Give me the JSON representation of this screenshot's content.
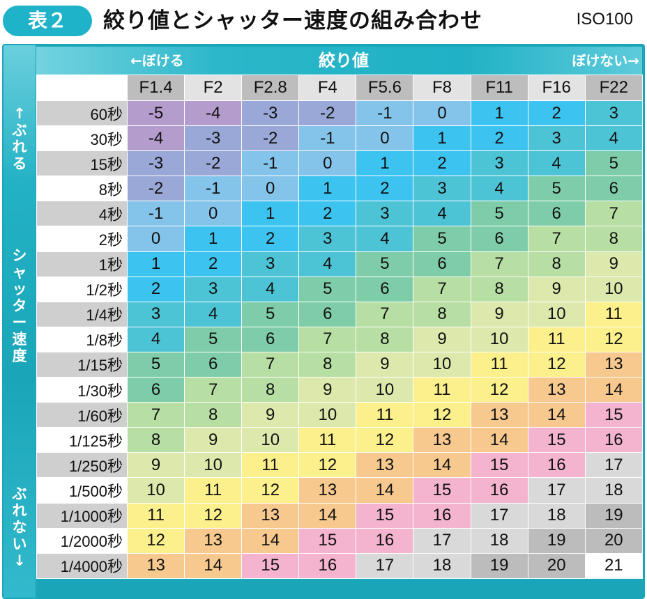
{
  "header": {
    "badge": "表２",
    "title": "絞り値とシャッター速度の組み合わせ",
    "iso": "ISO100"
  },
  "band": {
    "left": "←ぼける",
    "center": "絞り値",
    "right": "ぼけない→"
  },
  "side": {
    "top": [
      "↑",
      "ぶ",
      "れ",
      "る"
    ],
    "middle": [
      "シ",
      "ャ",
      "ッ",
      "タ",
      "ー",
      "速",
      "度"
    ],
    "bottom": [
      "ぶ",
      "れ",
      "な",
      "い",
      "↓"
    ]
  },
  "chart_data": {
    "type": "table",
    "title": "絞り値とシャッター速度の組み合わせ",
    "xlabel": "絞り値",
    "ylabel": "シャッター速度",
    "columns": [
      "F1.4",
      "F2",
      "F2.8",
      "F4",
      "F5.6",
      "F8",
      "F11",
      "F16",
      "F22"
    ],
    "rows": [
      "60秒",
      "30秒",
      "15秒",
      "8秒",
      "4秒",
      "2秒",
      "1秒",
      "1/2秒",
      "1/4秒",
      "1/8秒",
      "1/15秒",
      "1/30秒",
      "1/60秒",
      "1/125秒",
      "1/250秒",
      "1/500秒",
      "1/1000秒",
      "1/2000秒",
      "1/4000秒"
    ],
    "values": [
      [
        -5,
        -4,
        -3,
        -2,
        -1,
        0,
        1,
        2,
        3
      ],
      [
        -4,
        -3,
        -2,
        -1,
        0,
        1,
        2,
        3,
        4
      ],
      [
        -3,
        -2,
        -1,
        0,
        1,
        2,
        3,
        4,
        5
      ],
      [
        -2,
        -1,
        0,
        1,
        2,
        3,
        4,
        5,
        6
      ],
      [
        -1,
        0,
        1,
        2,
        3,
        4,
        5,
        6,
        7
      ],
      [
        0,
        1,
        2,
        3,
        4,
        5,
        6,
        7,
        8
      ],
      [
        1,
        2,
        3,
        4,
        5,
        6,
        7,
        8,
        9
      ],
      [
        2,
        3,
        4,
        5,
        6,
        7,
        8,
        9,
        10
      ],
      [
        3,
        4,
        5,
        6,
        7,
        8,
        9,
        10,
        11
      ],
      [
        4,
        5,
        6,
        7,
        8,
        9,
        10,
        11,
        12
      ],
      [
        5,
        6,
        7,
        8,
        9,
        10,
        11,
        12,
        13
      ],
      [
        6,
        7,
        8,
        9,
        10,
        11,
        12,
        13,
        14
      ],
      [
        7,
        8,
        9,
        10,
        11,
        12,
        13,
        14,
        15
      ],
      [
        8,
        9,
        10,
        11,
        12,
        13,
        14,
        15,
        16
      ],
      [
        9,
        10,
        11,
        12,
        13,
        14,
        15,
        16,
        17
      ],
      [
        10,
        11,
        12,
        13,
        14,
        15,
        16,
        17,
        18
      ],
      [
        11,
        12,
        13,
        14,
        15,
        16,
        17,
        18,
        19
      ],
      [
        12,
        13,
        14,
        15,
        16,
        17,
        18,
        19,
        20
      ],
      [
        13,
        14,
        15,
        16,
        17,
        18,
        19,
        20,
        21
      ]
    ],
    "value_colors": {
      "-5": "#b49ccd",
      "-4": "#b49ccd",
      "-3": "#99a8d6",
      "-2": "#99a8d6",
      "-1": "#85c4ea",
      "0": "#85c4ea",
      "1": "#3cc3ef",
      "2": "#3cc3ef",
      "3": "#4dc4d6",
      "4": "#4dc4d6",
      "5": "#7fcda8",
      "6": "#7fcda8",
      "7": "#b7dea3",
      "8": "#b7dea3",
      "9": "#dde9ac",
      "10": "#dde9ac",
      "11": "#fbf08c",
      "12": "#fbf08c",
      "13": "#f7c98e",
      "14": "#f7c98e",
      "15": "#f4b3cf",
      "16": "#f4b3cf",
      "17": "#d9d9d9",
      "18": "#d9d9d9",
      "19": "#bcbcbc",
      "20": "#bcbcbc",
      "21": "#ffffff"
    },
    "column_header_colors": [
      "#bdbdbd",
      "#e3e3e3"
    ]
  }
}
